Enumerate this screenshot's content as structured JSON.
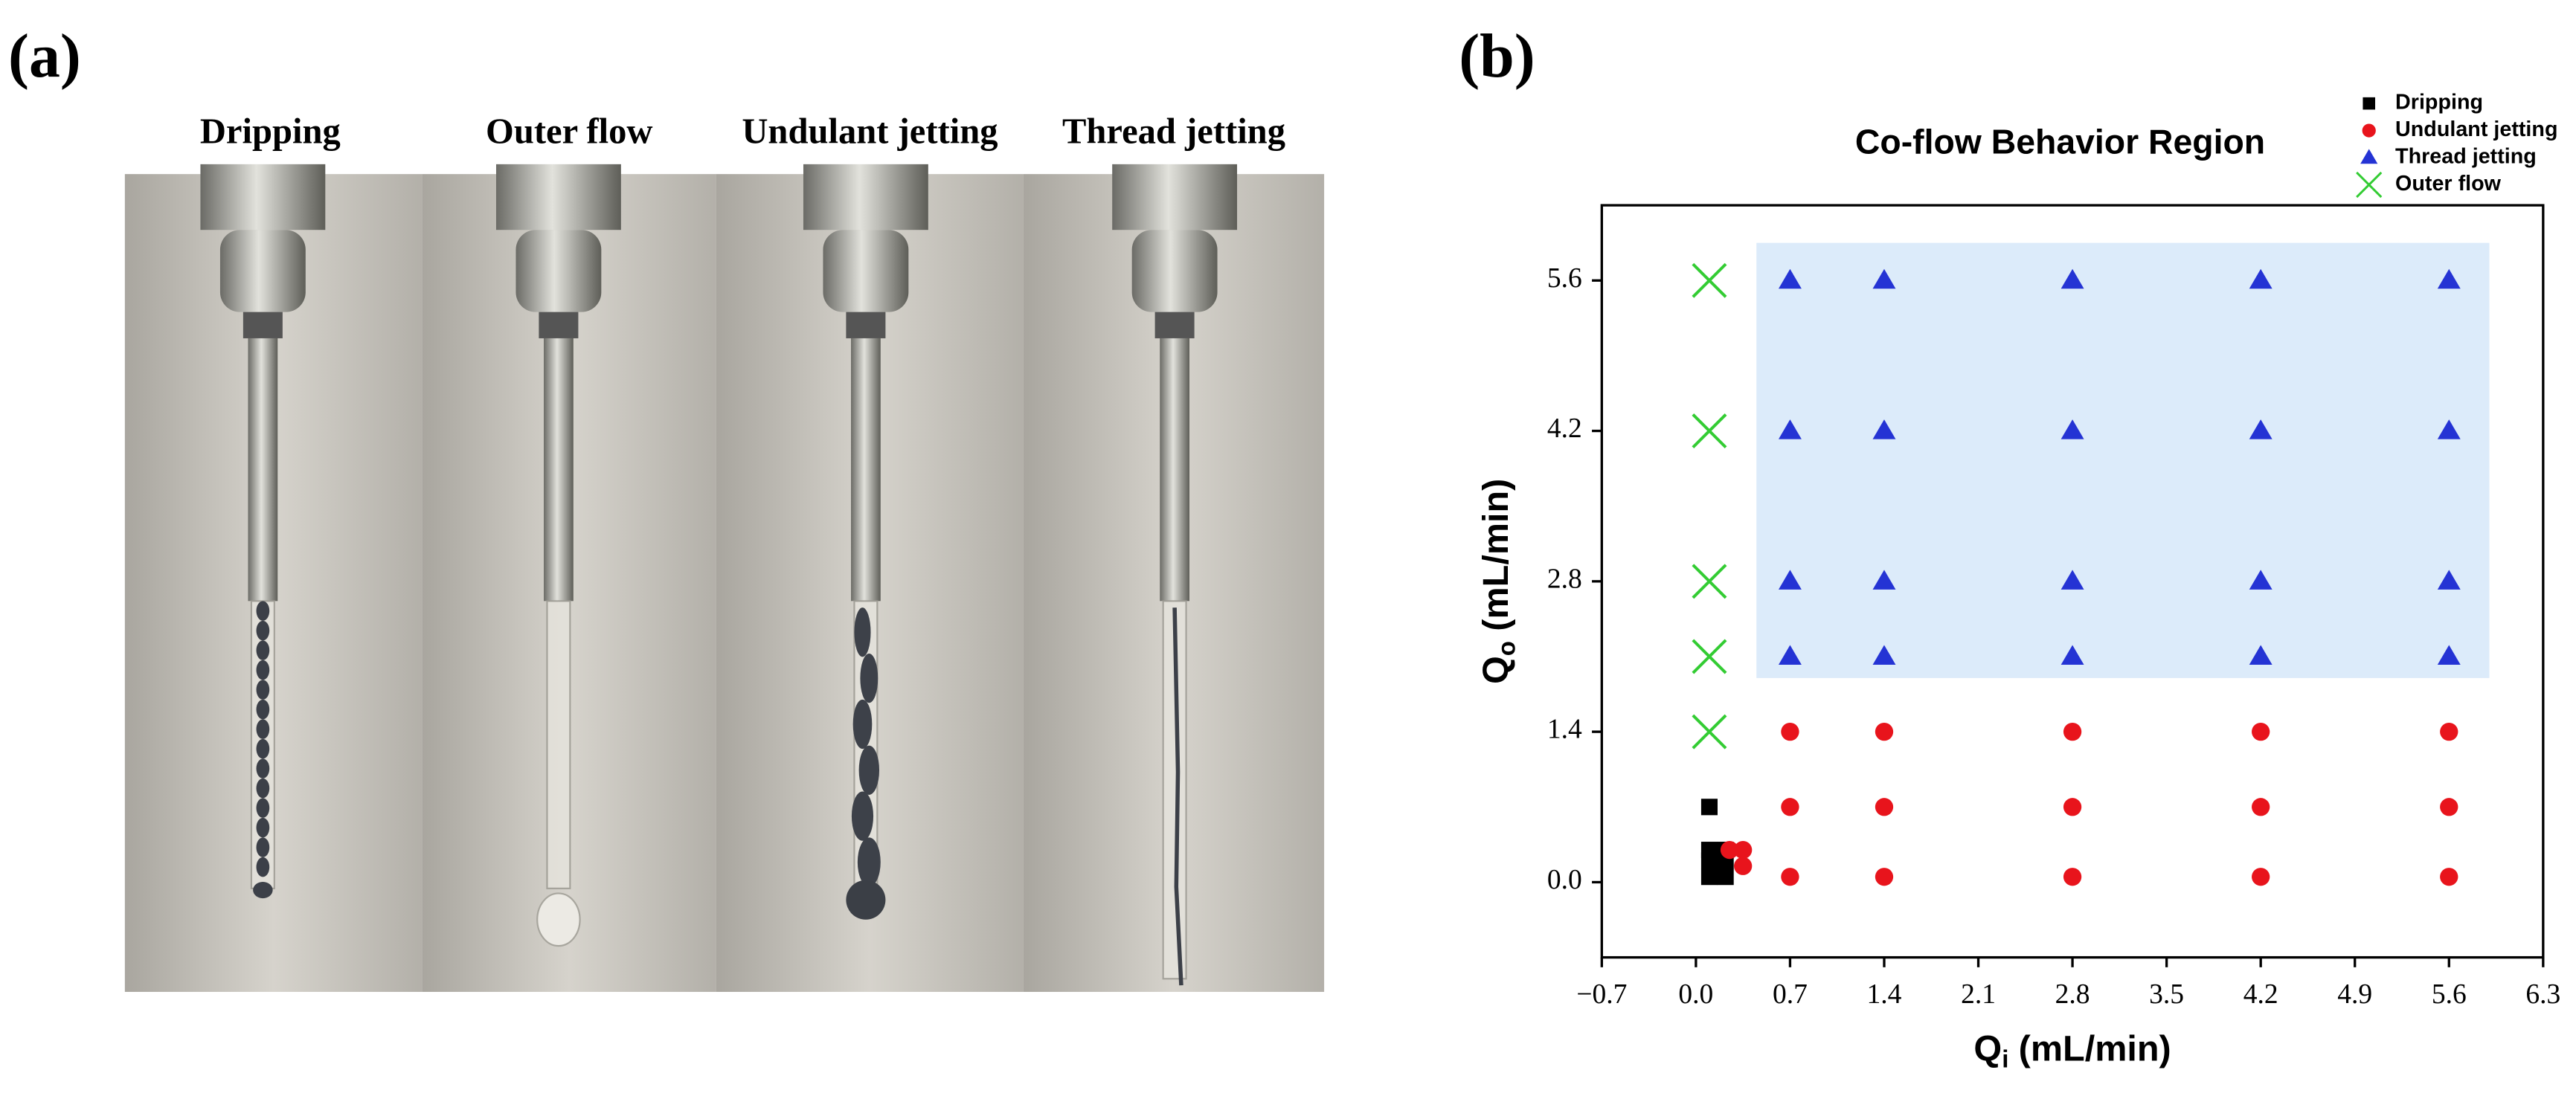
{
  "panel_a": {
    "label": "(a)",
    "captions": [
      "Dripping",
      "Outer flow",
      "Undulant jetting",
      "Thread jetting"
    ]
  },
  "panel_b": {
    "label": "(b)"
  },
  "chart_data": {
    "type": "scatter",
    "title": "Co-flow Behavior Region",
    "xlabel": {
      "symbol": "Q",
      "subscript": "i",
      "unit": "(mL/min)"
    },
    "ylabel": {
      "symbol": "Q",
      "subscript": "o",
      "unit": "(mL/min)"
    },
    "xlim": [
      -0.7,
      6.3
    ],
    "ylim": [
      -0.7,
      6.3
    ],
    "xticks": [
      {
        "value": -0.7,
        "label": "−0.7"
      },
      {
        "value": 0,
        "label": "0.0"
      },
      0.7,
      1.4,
      2.1,
      2.8,
      3.5,
      4.2,
      4.9,
      5.6,
      6.3
    ],
    "yticks": [
      {
        "value": 0,
        "label": "0.0"
      },
      1.4,
      2.8,
      4.2,
      5.6
    ],
    "legend": "upper right",
    "shaded_region": {
      "x": [
        0.45,
        5.9
      ],
      "y": [
        1.9,
        5.95
      ],
      "color": "#dcebfa"
    },
    "series": [
      {
        "name": "Dripping",
        "color": "#000000",
        "marker": "square",
        "x": [
          0.1,
          0.1,
          0.1,
          0.1,
          0.22,
          0.22,
          0.22
        ],
        "y": [
          0.7,
          0.3,
          0.2,
          0.05,
          0.3,
          0.2,
          0.05
        ]
      },
      {
        "name": "Undulant jetting",
        "color": "#e8141c",
        "marker": "circle",
        "x": [
          0.25,
          0.35,
          0.35,
          0.7,
          1.4,
          2.8,
          4.2,
          5.6,
          0.7,
          1.4,
          2.8,
          4.2,
          5.6,
          0.7,
          1.4,
          2.8,
          4.2,
          5.6
        ],
        "y": [
          0.3,
          0.3,
          0.15,
          0.05,
          0.05,
          0.05,
          0.05,
          0.05,
          0.7,
          0.7,
          0.7,
          0.7,
          0.7,
          1.4,
          1.4,
          1.4,
          1.4,
          1.4
        ]
      },
      {
        "name": "Thread jetting",
        "color": "#2433d4",
        "marker": "triangle",
        "x": [
          0.7,
          1.4,
          2.8,
          4.2,
          5.6,
          0.7,
          1.4,
          2.8,
          4.2,
          5.6,
          0.7,
          1.4,
          2.8,
          4.2,
          5.6,
          0.7,
          1.4,
          2.8,
          4.2,
          5.6
        ],
        "y": [
          2.1,
          2.1,
          2.1,
          2.1,
          2.1,
          2.8,
          2.8,
          2.8,
          2.8,
          2.8,
          4.2,
          4.2,
          4.2,
          4.2,
          4.2,
          5.6,
          5.6,
          5.6,
          5.6,
          5.6
        ]
      },
      {
        "name": "Outer flow",
        "color": "#33cc33",
        "marker": "x",
        "x": [
          0.1,
          0.1,
          0.1,
          0.1,
          0.1
        ],
        "y": [
          1.4,
          2.1,
          2.8,
          4.2,
          5.6
        ]
      }
    ]
  }
}
